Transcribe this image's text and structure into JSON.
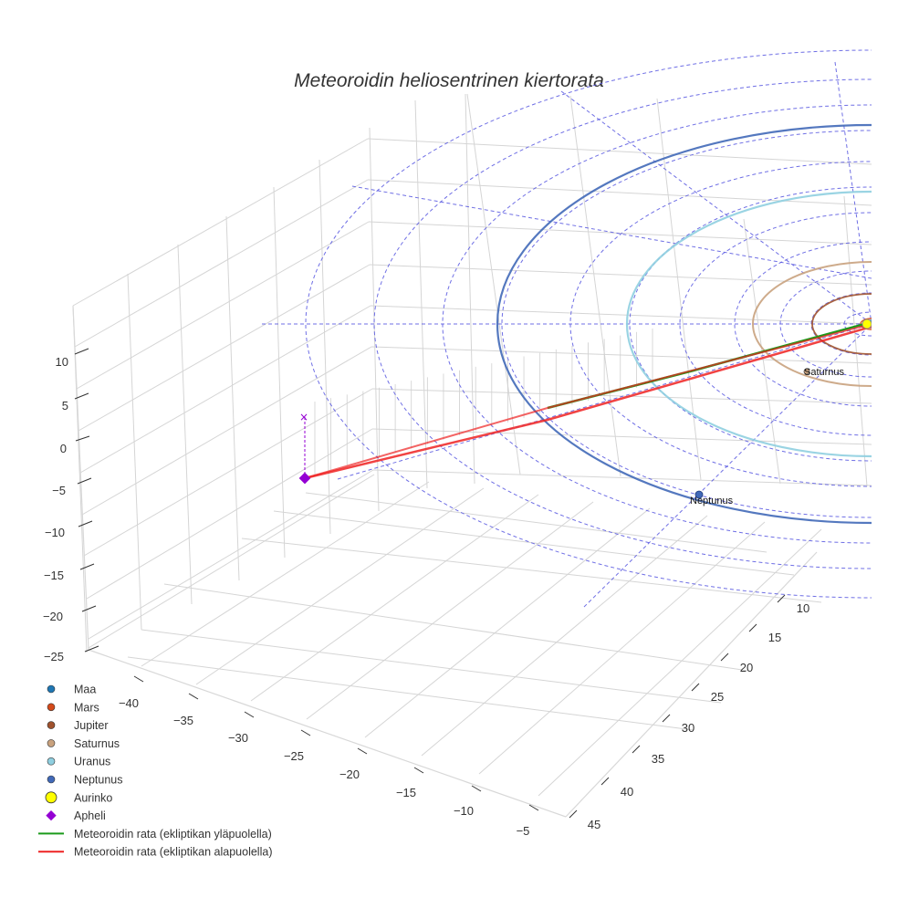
{
  "chart_data": {
    "type": "3d-line",
    "title": "Meteoroidin heliosentrinen kiertorata",
    "xlabel": "",
    "ylabel": "",
    "zlabel": "",
    "x_ticks": [
      -40,
      -35,
      -30,
      -25,
      -20,
      -15,
      -10,
      -5
    ],
    "y_ticks": [
      10,
      15,
      20,
      25,
      30,
      35,
      40,
      45
    ],
    "z_ticks": [
      10,
      5,
      0,
      -5,
      -10,
      -15,
      -20,
      -25
    ],
    "xlim": [
      -44,
      0
    ],
    "ylim": [
      0,
      47
    ],
    "zlim": [
      -27,
      15
    ],
    "grid": true,
    "legend_position": "bottom-left",
    "planets": [
      {
        "name": "Maa",
        "color": "#1f77b4",
        "orbit_radius_au": 1.0
      },
      {
        "name": "Mars",
        "color": "#d44a1a",
        "orbit_radius_au": 1.52
      },
      {
        "name": "Jupiter",
        "color": "#a0522d",
        "orbit_radius_au": 5.2
      },
      {
        "name": "Saturnus",
        "color": "#c9a27e",
        "orbit_radius_au": 9.5
      },
      {
        "name": "Uranus",
        "color": "#8fcfe0",
        "orbit_radius_au": 19.2
      },
      {
        "name": "Neptunus",
        "color": "#4169b8",
        "orbit_radius_au": 30.1
      }
    ],
    "sun": {
      "name": "Aurinko",
      "color": "#ffff00"
    },
    "aphelion": {
      "name": "Apheli",
      "color": "#9400d3",
      "x": -42,
      "y": 4,
      "z": -4
    },
    "trajectory": [
      {
        "name": "Meteoroidin rata (ekliptikan yläpuolella)",
        "color": "#1a9a1a",
        "points": [
          [
            0,
            0,
            0
          ],
          [
            -14,
            2,
            0.3
          ],
          [
            -26,
            3,
            0.5
          ]
        ]
      },
      {
        "name": "Meteoroidin rata (ekliptikan alapuolella)",
        "color": "#ee2222",
        "points": [
          [
            0,
            0,
            0
          ],
          [
            -14,
            2,
            -1.2
          ],
          [
            -30,
            3.5,
            -2.5
          ],
          [
            -42,
            4,
            -4
          ]
        ]
      }
    ],
    "point_labels": [
      {
        "text": "Saturnus"
      },
      {
        "text": "Neptunus"
      }
    ],
    "legend": [
      {
        "label": "Maa",
        "marker": "circle",
        "color": "#1f77b4"
      },
      {
        "label": "Mars",
        "marker": "circle",
        "color": "#d44a1a"
      },
      {
        "label": "Jupiter",
        "marker": "circle",
        "color": "#a0522d"
      },
      {
        "label": "Saturnus",
        "marker": "circle",
        "color": "#c9a27e"
      },
      {
        "label": "Uranus",
        "marker": "circle",
        "color": "#8fcfe0"
      },
      {
        "label": "Neptunus",
        "marker": "circle",
        "color": "#4169b8"
      },
      {
        "label": "Aurinko",
        "marker": "big-circle",
        "color": "#ffff00"
      },
      {
        "label": "Apheli",
        "marker": "diamond",
        "color": "#9400d3"
      },
      {
        "label": "Meteoroidin rata (ekliptikan yläpuolella)",
        "marker": "line",
        "color": "#1a9a1a"
      },
      {
        "label": "Meteoroidin rata (ekliptikan alapuolella)",
        "marker": "line",
        "color": "#ee2222"
      }
    ]
  }
}
